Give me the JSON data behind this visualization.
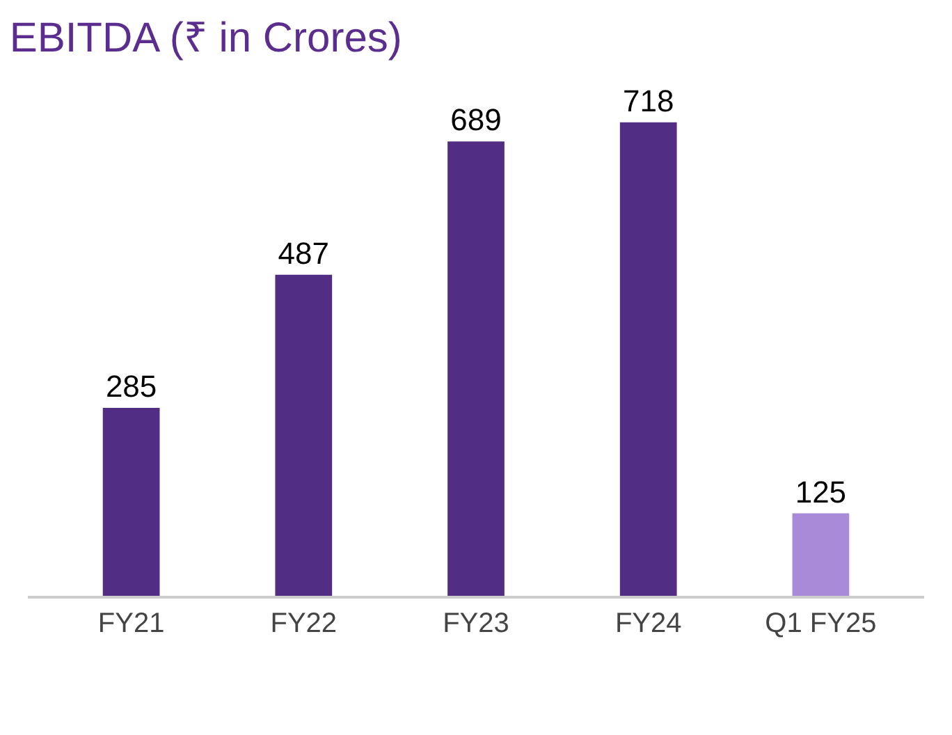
{
  "chart_data": {
    "type": "bar",
    "title": "EBITDA (₹ in Crores)",
    "categories": [
      "FY21",
      "FY22",
      "FY23",
      "FY24",
      "Q1 FY25"
    ],
    "values": [
      285,
      487,
      689,
      718,
      125
    ],
    "colors": [
      "#522d84",
      "#522d84",
      "#522d84",
      "#522d84",
      "#a98ad8"
    ],
    "data_labels": true
  }
}
